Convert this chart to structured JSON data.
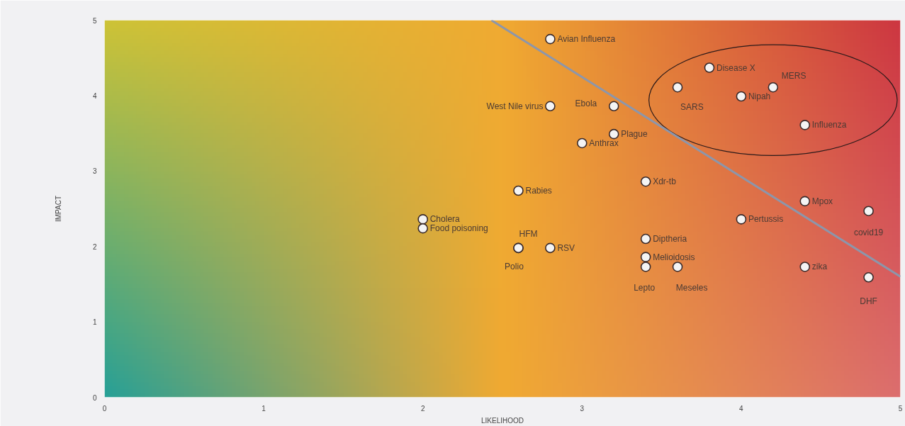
{
  "chart_data": {
    "type": "scatter",
    "xlabel": "LIKELIHOOD",
    "ylabel": "IMPACT",
    "xlim": [
      0,
      5
    ],
    "ylim": [
      0,
      5
    ],
    "xticks": [
      0,
      1,
      2,
      3,
      4,
      5
    ],
    "yticks": [
      0,
      1,
      2,
      3,
      4,
      5
    ],
    "series": [
      {
        "marker": "circle",
        "color": "#f4f4f4",
        "x": [
          2.8,
          2.8,
          3.2,
          3.2,
          3.0,
          3.6,
          3.8,
          4.0,
          4.2,
          4.4,
          3.4,
          2.6,
          2.0,
          2.0,
          2.6,
          2.6,
          2.8,
          3.4,
          3.4,
          3.4,
          3.6,
          4.4,
          4.0,
          4.8,
          4.4,
          4.8
        ],
        "values": [
          4.75,
          3.86,
          3.86,
          3.49,
          3.37,
          4.11,
          4.37,
          3.99,
          4.11,
          3.61,
          2.86,
          2.74,
          2.36,
          2.24,
          1.98,
          1.98,
          1.98,
          2.1,
          1.86,
          1.73,
          1.73,
          2.6,
          2.36,
          2.47,
          1.73,
          1.59
        ]
      },
      {
        "type": "line",
        "marker": "none",
        "color": "#8c96ab",
        "x": [
          2.43,
          5
        ],
        "values": [
          5,
          1.6
        ]
      }
    ],
    "annotations": [
      {
        "text": "Avian Influenza",
        "x": 2.8,
        "y": 4.75
      },
      {
        "text": "West Nile virus",
        "x": 2.8,
        "y": 3.86
      },
      {
        "text": "Ebola",
        "x": 3.2,
        "y": 3.86
      },
      {
        "text": "Plague",
        "x": 3.2,
        "y": 3.49
      },
      {
        "text": "Anthrax",
        "x": 3.0,
        "y": 3.37
      },
      {
        "text": "SARS",
        "x": 3.6,
        "y": 4.11
      },
      {
        "text": "Disease X",
        "x": 3.8,
        "y": 4.37
      },
      {
        "text": "Nipah",
        "x": 4.0,
        "y": 3.99
      },
      {
        "text": "MERS",
        "x": 4.2,
        "y": 4.11
      },
      {
        "text": "Influenza",
        "x": 4.4,
        "y": 3.61
      },
      {
        "text": "Xdr-tb",
        "x": 3.4,
        "y": 2.86
      },
      {
        "text": "Rabies",
        "x": 2.6,
        "y": 2.74
      },
      {
        "text": "Cholera",
        "x": 2.0,
        "y": 2.36
      },
      {
        "text": "Food poisoning",
        "x": 2.0,
        "y": 2.24
      },
      {
        "text": "HFM",
        "x": 2.6,
        "y": 1.98
      },
      {
        "text": "Polio",
        "x": 2.6,
        "y": 1.98
      },
      {
        "text": "RSV",
        "x": 2.8,
        "y": 1.98
      },
      {
        "text": "Diptheria",
        "x": 3.4,
        "y": 2.1
      },
      {
        "text": "Melioidosis",
        "x": 3.4,
        "y": 1.86
      },
      {
        "text": "Lepto",
        "x": 3.4,
        "y": 1.73
      },
      {
        "text": "Meseles",
        "x": 3.6,
        "y": 1.73
      },
      {
        "text": "Mpox",
        "x": 4.4,
        "y": 2.6
      },
      {
        "text": "Pertussis",
        "x": 4.0,
        "y": 2.36
      },
      {
        "text": "covid19",
        "x": 4.8,
        "y": 2.47
      },
      {
        "text": "zika",
        "x": 4.4,
        "y": 1.73
      },
      {
        "text": "DHF",
        "x": 4.8,
        "y": 1.59
      }
    ]
  }
}
